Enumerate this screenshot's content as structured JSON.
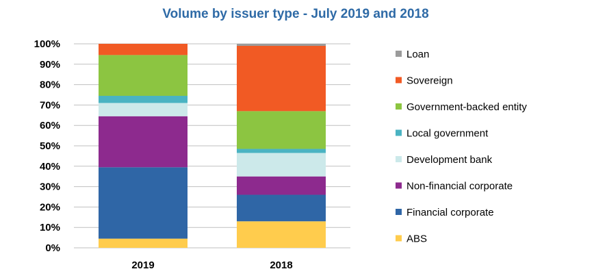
{
  "chart_data": {
    "type": "bar",
    "stacked": true,
    "title": "Volume by issuer type - July 2019 and 2018",
    "xlabel": "",
    "ylabel": "",
    "categories": [
      "2019",
      "2018"
    ],
    "ylim": [
      0,
      100
    ],
    "yticks": [
      "0%",
      "10%",
      "20%",
      "30%",
      "40%",
      "50%",
      "60%",
      "70%",
      "80%",
      "90%",
      "100%"
    ],
    "grid": true,
    "legend_position": "right",
    "series": [
      {
        "name": "ABS",
        "color": "#ffcc4d",
        "values": [
          4.5,
          13
        ]
      },
      {
        "name": "Financial corporate",
        "color": "#2f66a6",
        "values": [
          35,
          13
        ]
      },
      {
        "name": "Non-financial corporate",
        "color": "#8d2a8e",
        "values": [
          25,
          9
        ]
      },
      {
        "name": "Development bank",
        "color": "#cce9ea",
        "values": [
          6.5,
          11.5
        ]
      },
      {
        "name": "Local government",
        "color": "#4ab3c2",
        "values": [
          3.5,
          2
        ]
      },
      {
        "name": "Government-backed entity",
        "color": "#8cc541",
        "values": [
          20,
          18.5
        ]
      },
      {
        "name": "Sovereign",
        "color": "#f15a24",
        "values": [
          5.5,
          32
        ]
      },
      {
        "name": "Loan",
        "color": "#9b9b9b",
        "values": [
          0,
          1
        ]
      }
    ]
  }
}
